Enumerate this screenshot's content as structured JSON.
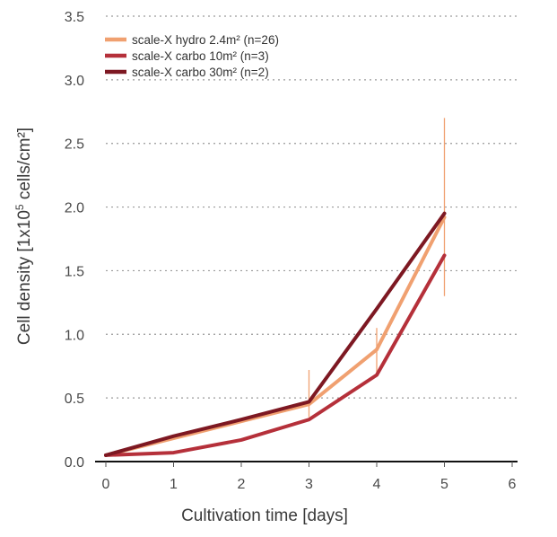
{
  "chart_data": {
    "type": "line",
    "xlabel": "Cultivation time [days]",
    "ylabel_parts": [
      "Cell density [1x10",
      "5",
      " cells/cm²]"
    ],
    "xlim": [
      0,
      6
    ],
    "ylim": [
      0,
      3.5
    ],
    "xticks": [
      "0",
      "1",
      "2",
      "3",
      "4",
      "5",
      "6"
    ],
    "yticks": [
      "0.0",
      "0.5",
      "1.0",
      "1.5",
      "2.0",
      "2.5",
      "3.0",
      "3.5"
    ],
    "grid": "horizontal-dotted",
    "legend_position": "top-left",
    "series": [
      {
        "name": "scale-X hydro 2.4m² (n=26)",
        "color": "#f0a070",
        "x": [
          0,
          3,
          4,
          5
        ],
        "y": [
          0.05,
          0.45,
          0.88,
          1.92
        ],
        "error_low": [
          null,
          0.35,
          0.7,
          1.3
        ],
        "error_high": [
          null,
          0.72,
          1.05,
          2.7
        ]
      },
      {
        "name": "scale-X carbo 10m² (n=3)",
        "color": "#b5303a",
        "x": [
          0,
          1,
          2,
          3,
          4,
          5
        ],
        "y": [
          0.05,
          0.07,
          0.17,
          0.33,
          0.68,
          1.62
        ]
      },
      {
        "name": "scale-X carbo 30m² (n=2)",
        "color": "#7d1822",
        "x": [
          0,
          1,
          2,
          3,
          4,
          5
        ],
        "y": [
          0.05,
          0.2,
          0.33,
          0.47,
          1.2,
          1.95
        ]
      }
    ]
  }
}
